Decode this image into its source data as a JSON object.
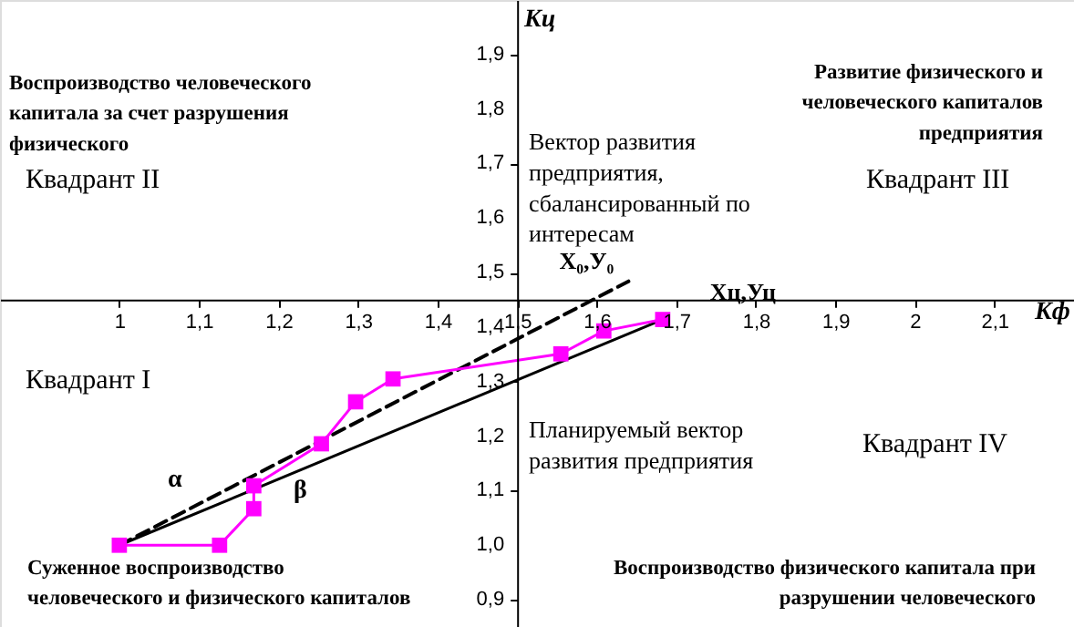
{
  "chart_data": {
    "type": "line",
    "xlabel": "Kф",
    "ylabel": "Kц",
    "xlim": [
      0.85,
      2.2
    ],
    "ylim": [
      0.85,
      2.0
    ],
    "xticks": [
      {
        "value": 1,
        "label": "1"
      },
      {
        "value": 1.1,
        "label": "1,1"
      },
      {
        "value": 1.2,
        "label": "1,2"
      },
      {
        "value": 1.3,
        "label": "1,3"
      },
      {
        "value": 1.4,
        "label": "1,4"
      },
      {
        "value": 1.5,
        "label": "1,5"
      },
      {
        "value": 1.6,
        "label": "1,6"
      },
      {
        "value": 1.7,
        "label": "1,7"
      },
      {
        "value": 1.8,
        "label": "1,8"
      },
      {
        "value": 1.9,
        "label": "1,9"
      },
      {
        "value": 2,
        "label": "2"
      },
      {
        "value": 2.1,
        "label": "2,1"
      }
    ],
    "yticks": [
      {
        "value": 0.9,
        "label": "0,9"
      },
      {
        "value": 1.0,
        "label": "1,0"
      },
      {
        "value": 1.1,
        "label": "1,1"
      },
      {
        "value": 1.2,
        "label": "1,2"
      },
      {
        "value": 1.3,
        "label": "1,3"
      },
      {
        "value": 1.4,
        "label": "1,4"
      },
      {
        "value": 1.5,
        "label": "1,5"
      },
      {
        "value": 1.6,
        "label": "1,6"
      },
      {
        "value": 1.7,
        "label": "1,7"
      },
      {
        "value": 1.8,
        "label": "1,8"
      },
      {
        "value": 1.9,
        "label": "1,9"
      }
    ],
    "grid": false,
    "series": [
      {
        "type": "line",
        "color": "#000000",
        "line_style": "dashed",
        "marker": "none",
        "x": [
          1.0,
          1.64
        ],
        "values": [
          1.0,
          1.484
        ]
      },
      {
        "type": "line",
        "color": "#000000",
        "line_style": "solid",
        "marker": "none",
        "x": [
          1.0,
          1.683
        ],
        "values": [
          1.0,
          1.414
        ]
      },
      {
        "type": "line",
        "color": "#ff00ff",
        "line_style": "solid",
        "marker": "square",
        "x": [
          1.0,
          1.126,
          1.169,
          1.169,
          1.254,
          1.297,
          1.344,
          1.555,
          1.609,
          1.683
        ],
        "values": [
          1.0,
          1.0,
          1.067,
          1.109,
          1.186,
          1.263,
          1.305,
          1.351,
          1.393,
          1.414
        ]
      }
    ],
    "annotations": [
      "Воспроизводство человеческого\nкапитала за счет разрушения\nфизического",
      "Развитие физического и\nчеловеческого капиталов\nпредприятия",
      "Суженное воспроизводство\nчеловеческого и физического капиталов",
      "Воспроизводство физического капитала при\nразрушении человеческого",
      "Квадрант II",
      "Квадрант III",
      "Квадрант I",
      "Квадрант IV",
      "Вектор развития\nпредприятия,\nсбалансированный по\nинтересам",
      "Планируемый вектор\nразвития предприятия",
      "α",
      "β",
      {
        "text": "X₀,У₀",
        "x": 1.64,
        "y": 1.484
      },
      {
        "text": "Xц,Уц",
        "x": 1.683,
        "y": 1.414
      }
    ]
  }
}
